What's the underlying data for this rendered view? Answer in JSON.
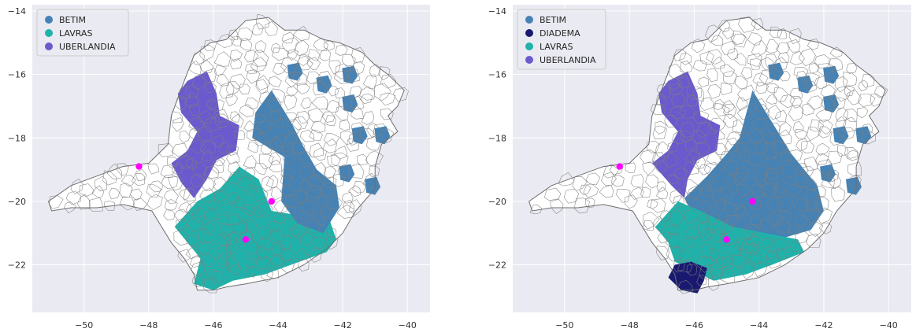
{
  "chart_data": [
    {
      "type": "choropleth",
      "xlim": [
        -51.6,
        -39.3
      ],
      "ylim": [
        -23.5,
        -13.8
      ],
      "xticks": [
        -50,
        -48,
        -46,
        -44,
        -42,
        -40
      ],
      "yticks": [
        -14,
        -16,
        -18,
        -20,
        -22
      ],
      "grid": true,
      "legend_placement": "top-left",
      "legend": [
        {
          "label": "BETIM",
          "color": "#4682b4"
        },
        {
          "label": "LAVRAS",
          "color": "#20b2aa"
        },
        {
          "label": "UBERLANDIA",
          "color": "#6a5acd"
        }
      ],
      "regions": [
        {
          "name": "UBERLANDIA",
          "color": "#6a5acd",
          "outline": [
            [
              -46.8,
              -16.2
            ],
            [
              -46.2,
              -15.9
            ],
            [
              -45.9,
              -16.6
            ],
            [
              -45.8,
              -17.3
            ],
            [
              -45.2,
              -17.6
            ],
            [
              -45.3,
              -18.4
            ],
            [
              -45.9,
              -18.7
            ],
            [
              -46.2,
              -19.3
            ],
            [
              -46.6,
              -19.9
            ],
            [
              -47.0,
              -19.4
            ],
            [
              -47.3,
              -18.8
            ],
            [
              -46.8,
              -18.4
            ],
            [
              -46.5,
              -17.8
            ],
            [
              -47.0,
              -17.2
            ],
            [
              -47.1,
              -16.6
            ]
          ]
        },
        {
          "name": "LAVRAS",
          "color": "#20b2aa",
          "outline": [
            [
              -47.2,
              -20.8
            ],
            [
              -46.5,
              -20.0
            ],
            [
              -45.8,
              -19.6
            ],
            [
              -45.2,
              -18.9
            ],
            [
              -44.6,
              -19.3
            ],
            [
              -44.2,
              -20.3
            ],
            [
              -43.6,
              -20.4
            ],
            [
              -42.6,
              -20.0
            ],
            [
              -42.2,
              -21.2
            ],
            [
              -42.5,
              -21.6
            ],
            [
              -43.6,
              -22.0
            ],
            [
              -44.4,
              -22.3
            ],
            [
              -45.4,
              -22.5
            ],
            [
              -46.0,
              -22.8
            ],
            [
              -46.6,
              -22.6
            ],
            [
              -46.4,
              -21.8
            ],
            [
              -46.8,
              -21.3
            ]
          ]
        },
        {
          "name": "BETIM",
          "color": "#4682b4",
          "outline": [
            [
              -43.8,
              -18.6
            ],
            [
              -44.8,
              -18.0
            ],
            [
              -44.7,
              -17.2
            ],
            [
              -44.2,
              -16.5
            ],
            [
              -43.6,
              -17.5
            ],
            [
              -43.2,
              -18.3
            ],
            [
              -42.8,
              -19.0
            ],
            [
              -42.2,
              -19.5
            ],
            [
              -42.1,
              -20.2
            ],
            [
              -42.6,
              -21.0
            ],
            [
              -43.4,
              -20.7
            ],
            [
              -43.9,
              -20.0
            ]
          ]
        }
      ],
      "patches": [
        {
          "name": "BETIM",
          "color": "#4682b4",
          "at": [
            -43.5,
            -15.9
          ]
        },
        {
          "name": "BETIM",
          "color": "#4682b4",
          "at": [
            -42.6,
            -16.3
          ]
        },
        {
          "name": "BETIM",
          "color": "#4682b4",
          "at": [
            -41.8,
            -16.0
          ]
        },
        {
          "name": "BETIM",
          "color": "#4682b4",
          "at": [
            -41.8,
            -16.9
          ]
        },
        {
          "name": "BETIM",
          "color": "#4682b4",
          "at": [
            -41.5,
            -17.9
          ]
        },
        {
          "name": "BETIM",
          "color": "#4682b4",
          "at": [
            -40.8,
            -17.9
          ]
        },
        {
          "name": "BETIM",
          "color": "#4682b4",
          "at": [
            -41.9,
            -19.1
          ]
        },
        {
          "name": "BETIM",
          "color": "#4682b4",
          "at": [
            -41.1,
            -19.5
          ]
        }
      ],
      "points": [
        {
          "x": -48.3,
          "y": -18.9,
          "color": "#ff00ff"
        },
        {
          "x": -44.2,
          "y": -20.0,
          "color": "#ff00ff"
        },
        {
          "x": -45.0,
          "y": -21.2,
          "color": "#ff00ff"
        }
      ]
    },
    {
      "type": "choropleth",
      "xlim": [
        -51.6,
        -39.3
      ],
      "ylim": [
        -23.5,
        -13.8
      ],
      "xticks": [
        -50,
        -48,
        -46,
        -44,
        -42,
        -40
      ],
      "yticks": [
        -14,
        -16,
        -18,
        -20,
        -22
      ],
      "grid": true,
      "legend_placement": "top-left",
      "legend": [
        {
          "label": "BETIM",
          "color": "#4682b4"
        },
        {
          "label": "DIADEMA",
          "color": "#191970"
        },
        {
          "label": "LAVRAS",
          "color": "#20b2aa"
        },
        {
          "label": "UBERLANDIA",
          "color": "#6a5acd"
        }
      ],
      "regions": [
        {
          "name": "UBERLANDIA",
          "color": "#6a5acd",
          "outline": [
            [
              -46.8,
              -16.2
            ],
            [
              -46.2,
              -15.9
            ],
            [
              -45.9,
              -16.6
            ],
            [
              -45.8,
              -17.3
            ],
            [
              -45.2,
              -17.6
            ],
            [
              -45.3,
              -18.4
            ],
            [
              -45.9,
              -18.7
            ],
            [
              -46.2,
              -19.3
            ],
            [
              -46.3,
              -19.9
            ],
            [
              -46.7,
              -19.5
            ],
            [
              -47.3,
              -18.8
            ],
            [
              -46.8,
              -18.4
            ],
            [
              -46.5,
              -17.8
            ],
            [
              -47.0,
              -17.2
            ],
            [
              -47.1,
              -16.6
            ]
          ]
        },
        {
          "name": "BETIM",
          "color": "#4682b4",
          "outline": [
            [
              -46.3,
              -19.9
            ],
            [
              -45.6,
              -19.2
            ],
            [
              -45.0,
              -18.5
            ],
            [
              -44.6,
              -18.0
            ],
            [
              -44.2,
              -16.5
            ],
            [
              -43.6,
              -17.5
            ],
            [
              -43.0,
              -18.5
            ],
            [
              -42.2,
              -19.5
            ],
            [
              -42.0,
              -20.3
            ],
            [
              -42.4,
              -20.9
            ],
            [
              -43.4,
              -21.2
            ],
            [
              -44.4,
              -21.1
            ],
            [
              -45.2,
              -20.8
            ],
            [
              -46.0,
              -20.5
            ]
          ]
        },
        {
          "name": "LAVRAS",
          "color": "#20b2aa",
          "outline": [
            [
              -47.2,
              -20.8
            ],
            [
              -46.5,
              -20.0
            ],
            [
              -45.8,
              -20.3
            ],
            [
              -44.8,
              -20.8
            ],
            [
              -43.8,
              -21.0
            ],
            [
              -42.8,
              -21.2
            ],
            [
              -42.6,
              -21.6
            ],
            [
              -43.6,
              -22.0
            ],
            [
              -44.4,
              -22.3
            ],
            [
              -45.4,
              -22.5
            ],
            [
              -46.0,
              -22.2
            ],
            [
              -46.6,
              -21.9
            ],
            [
              -46.8,
              -21.3
            ]
          ]
        },
        {
          "name": "DIADEMA",
          "color": "#191970",
          "outline": [
            [
              -46.6,
              -22.0
            ],
            [
              -46.1,
              -21.9
            ],
            [
              -45.6,
              -22.1
            ],
            [
              -45.7,
              -22.5
            ],
            [
              -45.9,
              -22.9
            ],
            [
              -46.4,
              -22.8
            ],
            [
              -46.8,
              -22.4
            ]
          ]
        }
      ],
      "patches": [
        {
          "name": "BETIM",
          "color": "#4682b4",
          "at": [
            -43.5,
            -15.9
          ]
        },
        {
          "name": "BETIM",
          "color": "#4682b4",
          "at": [
            -42.6,
            -16.3
          ]
        },
        {
          "name": "BETIM",
          "color": "#4682b4",
          "at": [
            -41.8,
            -16.0
          ]
        },
        {
          "name": "BETIM",
          "color": "#4682b4",
          "at": [
            -41.8,
            -16.9
          ]
        },
        {
          "name": "BETIM",
          "color": "#4682b4",
          "at": [
            -41.5,
            -17.9
          ]
        },
        {
          "name": "BETIM",
          "color": "#4682b4",
          "at": [
            -40.8,
            -17.9
          ]
        },
        {
          "name": "BETIM",
          "color": "#4682b4",
          "at": [
            -41.9,
            -19.1
          ]
        },
        {
          "name": "BETIM",
          "color": "#4682b4",
          "at": [
            -41.1,
            -19.5
          ]
        }
      ],
      "points": [
        {
          "x": -48.3,
          "y": -18.9,
          "color": "#ff00ff"
        },
        {
          "x": -44.2,
          "y": -20.0,
          "color": "#ff00ff"
        },
        {
          "x": -45.0,
          "y": -21.2,
          "color": "#ff00ff"
        }
      ]
    }
  ],
  "state_outline": [
    [
      -51.1,
      -20.0
    ],
    [
      -50.4,
      -19.5
    ],
    [
      -49.6,
      -19.2
    ],
    [
      -48.8,
      -18.9
    ],
    [
      -48.0,
      -18.8
    ],
    [
      -47.4,
      -18.2
    ],
    [
      -47.3,
      -17.3
    ],
    [
      -46.9,
      -16.2
    ],
    [
      -46.6,
      -15.4
    ],
    [
      -46.1,
      -15.0
    ],
    [
      -45.6,
      -14.9
    ],
    [
      -45.0,
      -14.3
    ],
    [
      -44.3,
      -14.2
    ],
    [
      -43.8,
      -14.6
    ],
    [
      -43.2,
      -14.6
    ],
    [
      -42.6,
      -14.9
    ],
    [
      -42.1,
      -15.0
    ],
    [
      -41.4,
      -15.3
    ],
    [
      -41.0,
      -15.7
    ],
    [
      -40.6,
      -16.0
    ],
    [
      -40.1,
      -16.5
    ],
    [
      -40.3,
      -17.0
    ],
    [
      -40.6,
      -17.3
    ],
    [
      -40.3,
      -17.8
    ],
    [
      -40.8,
      -18.2
    ],
    [
      -41.0,
      -18.9
    ],
    [
      -41.0,
      -19.6
    ],
    [
      -41.6,
      -20.3
    ],
    [
      -42.0,
      -21.0
    ],
    [
      -42.5,
      -21.5
    ],
    [
      -43.2,
      -22.0
    ],
    [
      -44.0,
      -22.4
    ],
    [
      -45.0,
      -22.6
    ],
    [
      -45.6,
      -22.7
    ],
    [
      -46.0,
      -22.8
    ],
    [
      -46.5,
      -22.8
    ],
    [
      -46.6,
      -22.3
    ],
    [
      -46.9,
      -21.8
    ],
    [
      -47.3,
      -21.3
    ],
    [
      -47.6,
      -20.8
    ],
    [
      -47.9,
      -20.3
    ],
    [
      -48.8,
      -20.1
    ],
    [
      -49.6,
      -20.2
    ],
    [
      -50.4,
      -20.2
    ],
    [
      -51.0,
      -20.3
    ]
  ]
}
